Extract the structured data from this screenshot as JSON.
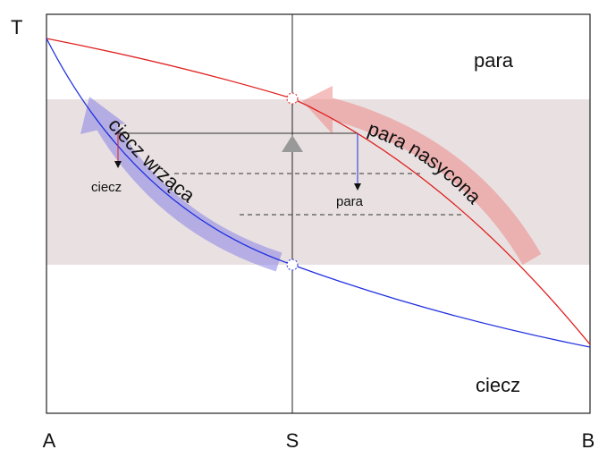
{
  "axis": {
    "y_label": "T",
    "x_labels": [
      "A",
      "S",
      "B"
    ]
  },
  "regions": {
    "top": "para",
    "bottom": "ciecz"
  },
  "curves": {
    "boiling": "ciecz wrząca",
    "saturated": "para nasycona"
  },
  "lever": {
    "liquid": "ciecz",
    "vapor": "para"
  }
}
